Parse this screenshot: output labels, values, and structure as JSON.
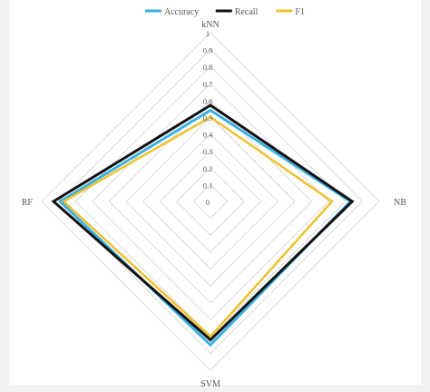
{
  "chart_data": {
    "type": "radar",
    "axes": [
      "kNN",
      "NB",
      "SVM",
      "RF"
    ],
    "ticks": [
      "0",
      "0.1",
      "0.2",
      "0.3",
      "0.4",
      "0.5",
      "0.6",
      "0.7",
      "0.8",
      "0.9",
      "1"
    ],
    "rmax": 1,
    "series": [
      {
        "name": "Accuracy",
        "color": "#3ab0e3",
        "values": [
          0.54,
          0.83,
          0.85,
          0.89
        ]
      },
      {
        "name": "Recall",
        "color": "#111111",
        "values": [
          0.57,
          0.84,
          0.82,
          0.93
        ]
      },
      {
        "name": "F1",
        "color": "#f0c030",
        "values": [
          0.5,
          0.72,
          0.8,
          0.87
        ]
      }
    ],
    "legend_position": "top",
    "grid": true
  }
}
